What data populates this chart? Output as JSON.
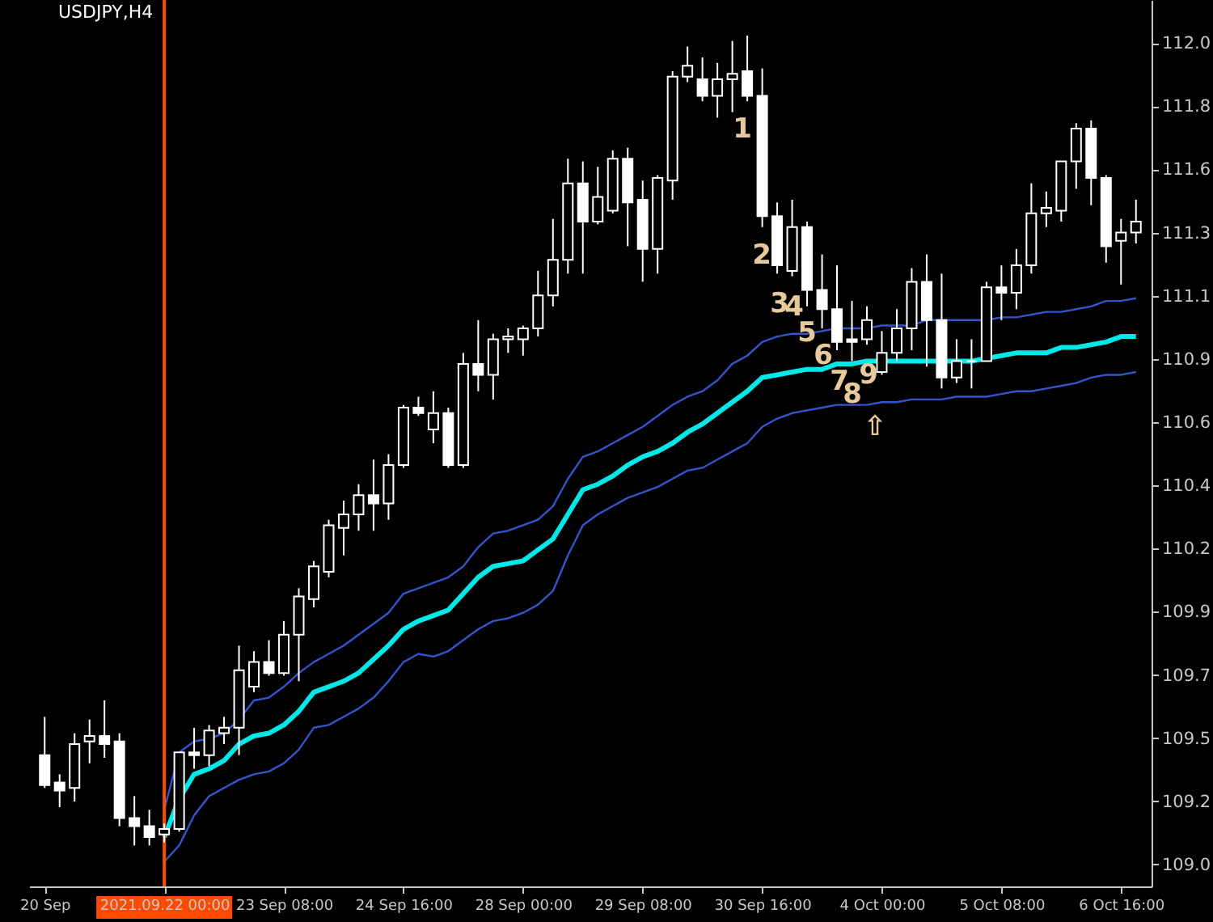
{
  "chart_data": {
    "type": "candlestick",
    "title": "USDJPY,H4",
    "categories": [
      "20 Sep",
      null,
      null,
      null,
      null,
      null,
      null,
      null,
      "2021.09.22 00:00",
      null,
      null,
      null,
      null,
      null,
      null,
      null,
      "23 Sep 08:00",
      null,
      null,
      null,
      null,
      null,
      null,
      null,
      "24 Sep 16:00",
      null,
      null,
      null,
      null,
      null,
      null,
      null,
      "28 Sep 00:00",
      null,
      null,
      null,
      null,
      null,
      null,
      null,
      "29 Sep 08:00",
      null,
      null,
      null,
      null,
      null,
      null,
      null,
      "30 Sep 16:00",
      null,
      null,
      null,
      null,
      null,
      null,
      null,
      "4 Oct 00:00",
      null,
      null,
      null,
      null,
      null,
      null,
      null,
      "5 Oct 08:00",
      null,
      null,
      null,
      null,
      null,
      null,
      null,
      "6 Oct 16:00",
      null
    ],
    "ohlc": [
      [
        109.41,
        109.55,
        109.29,
        109.3
      ],
      [
        109.31,
        109.34,
        109.22,
        109.28
      ],
      [
        109.29,
        109.49,
        109.24,
        109.45
      ],
      [
        109.46,
        109.54,
        109.38,
        109.48
      ],
      [
        109.48,
        109.61,
        109.4,
        109.45
      ],
      [
        109.46,
        109.49,
        109.15,
        109.18
      ],
      [
        109.18,
        109.26,
        109.08,
        109.15
      ],
      [
        109.15,
        109.21,
        109.08,
        109.11
      ],
      [
        109.12,
        109.16,
        109.09,
        109.14
      ],
      [
        109.14,
        109.42,
        109.13,
        109.42
      ],
      [
        109.42,
        109.51,
        109.36,
        109.41
      ],
      [
        109.41,
        109.52,
        109.37,
        109.5
      ],
      [
        109.49,
        109.55,
        109.45,
        109.51
      ],
      [
        109.51,
        109.81,
        109.41,
        109.72
      ],
      [
        109.66,
        109.79,
        109.64,
        109.75
      ],
      [
        109.75,
        109.83,
        109.7,
        109.71
      ],
      [
        109.71,
        109.9,
        109.7,
        109.85
      ],
      [
        109.85,
        110.02,
        109.68,
        109.99
      ],
      [
        109.98,
        110.12,
        109.95,
        110.1
      ],
      [
        110.08,
        110.27,
        110.06,
        110.25
      ],
      [
        110.24,
        110.34,
        110.14,
        110.29
      ],
      [
        110.29,
        110.4,
        110.23,
        110.36
      ],
      [
        110.36,
        110.49,
        110.23,
        110.33
      ],
      [
        110.33,
        110.51,
        110.27,
        110.47
      ],
      [
        110.47,
        110.69,
        110.46,
        110.68
      ],
      [
        110.68,
        110.72,
        110.65,
        110.66
      ],
      [
        110.6,
        110.74,
        110.55,
        110.66
      ],
      [
        110.66,
        110.68,
        110.46,
        110.47
      ],
      [
        110.47,
        110.88,
        110.46,
        110.84
      ],
      [
        110.84,
        111.0,
        110.74,
        110.8
      ],
      [
        110.8,
        110.95,
        110.71,
        110.93
      ],
      [
        110.93,
        110.97,
        110.88,
        110.94
      ],
      [
        110.93,
        110.98,
        110.87,
        110.97
      ],
      [
        110.97,
        111.18,
        110.94,
        111.09
      ],
      [
        111.09,
        111.37,
        111.05,
        111.22
      ],
      [
        111.22,
        111.59,
        111.17,
        111.5
      ],
      [
        111.5,
        111.58,
        111.17,
        111.36
      ],
      [
        111.36,
        111.56,
        111.35,
        111.45
      ],
      [
        111.4,
        111.62,
        111.39,
        111.59
      ],
      [
        111.59,
        111.63,
        111.27,
        111.43
      ],
      [
        111.44,
        111.51,
        111.14,
        111.26
      ],
      [
        111.26,
        111.53,
        111.17,
        111.52
      ],
      [
        111.51,
        111.91,
        111.44,
        111.89
      ],
      [
        111.89,
        112.0,
        111.87,
        111.93
      ],
      [
        111.88,
        111.96,
        111.8,
        111.82
      ],
      [
        111.82,
        111.94,
        111.74,
        111.88
      ],
      [
        111.88,
        112.02,
        111.76,
        111.9
      ],
      [
        111.91,
        112.04,
        111.8,
        111.82
      ],
      [
        111.82,
        111.92,
        111.34,
        111.38
      ],
      [
        111.38,
        111.43,
        111.17,
        111.2
      ],
      [
        111.18,
        111.44,
        111.16,
        111.34
      ],
      [
        111.34,
        111.36,
        111.05,
        111.11
      ],
      [
        111.11,
        111.24,
        110.97,
        111.04
      ],
      [
        111.04,
        111.2,
        110.89,
        110.92
      ],
      [
        110.93,
        111.07,
        110.85,
        110.92
      ],
      [
        110.93,
        111.05,
        110.91,
        111.0
      ],
      [
        110.81,
        110.96,
        110.8,
        110.88
      ],
      [
        110.88,
        111.04,
        110.85,
        110.97
      ],
      [
        110.97,
        111.19,
        110.89,
        111.14
      ],
      [
        111.14,
        111.24,
        110.83,
        111.0
      ],
      [
        111.0,
        111.17,
        110.75,
        110.79
      ],
      [
        110.79,
        110.93,
        110.77,
        110.85
      ],
      [
        110.85,
        110.93,
        110.75,
        110.85
      ],
      [
        110.85,
        111.14,
        110.85,
        111.12
      ],
      [
        111.12,
        111.2,
        111.0,
        111.1
      ],
      [
        111.1,
        111.26,
        111.04,
        111.2
      ],
      [
        111.2,
        111.5,
        111.17,
        111.39
      ],
      [
        111.39,
        111.47,
        111.34,
        111.41
      ],
      [
        111.4,
        111.58,
        111.36,
        111.58
      ],
      [
        111.58,
        111.72,
        111.48,
        111.7
      ],
      [
        111.7,
        111.73,
        111.42,
        111.52
      ],
      [
        111.52,
        111.53,
        111.21,
        111.27
      ],
      [
        111.29,
        111.37,
        111.13,
        111.32
      ],
      [
        111.32,
        111.44,
        111.28,
        111.36
      ]
    ],
    "series": [
      {
        "type": "line",
        "color": "#00e8e8",
        "values": [
          null,
          null,
          null,
          null,
          null,
          null,
          null,
          null,
          109.11,
          109.25,
          109.34,
          109.36,
          109.39,
          109.45,
          109.48,
          109.49,
          109.52,
          109.57,
          109.64,
          109.66,
          109.68,
          109.71,
          109.76,
          109.81,
          109.87,
          109.9,
          109.92,
          109.94,
          110.0,
          110.06,
          110.1,
          110.11,
          110.12,
          110.16,
          110.2,
          110.29,
          110.38,
          110.4,
          110.43,
          110.47,
          110.5,
          110.52,
          110.55,
          110.59,
          110.62,
          110.66,
          110.7,
          110.74,
          110.79,
          110.8,
          110.81,
          110.82,
          110.82,
          110.84,
          110.84,
          110.85,
          110.85,
          110.85,
          110.85,
          110.85,
          110.85,
          110.85,
          110.85,
          110.86,
          110.87,
          110.88,
          110.88,
          110.88,
          110.9,
          110.9,
          110.91,
          110.92,
          110.94,
          110.94
        ]
      },
      {
        "type": "line",
        "color": "#3355cc",
        "values": [
          null,
          null,
          null,
          null,
          null,
          null,
          null,
          null,
          109.21,
          109.42,
          109.46,
          109.47,
          109.49,
          109.54,
          109.61,
          109.62,
          109.66,
          109.71,
          109.75,
          109.78,
          109.81,
          109.85,
          109.89,
          109.93,
          110.0,
          110.02,
          110.04,
          110.06,
          110.1,
          110.17,
          110.22,
          110.23,
          110.25,
          110.27,
          110.32,
          110.42,
          110.5,
          110.52,
          110.55,
          110.58,
          110.61,
          110.65,
          110.69,
          110.72,
          110.74,
          110.78,
          110.84,
          110.87,
          110.92,
          110.94,
          110.95,
          110.95,
          110.96,
          110.97,
          110.97,
          110.97,
          110.98,
          110.98,
          110.98,
          111.0,
          111.0,
          111.0,
          111.0,
          111.0,
          111.01,
          111.01,
          111.02,
          111.03,
          111.03,
          111.04,
          111.05,
          111.07,
          111.07,
          111.08
        ]
      },
      {
        "type": "line",
        "color": "#3355cc",
        "values": [
          null,
          null,
          null,
          null,
          null,
          null,
          null,
          null,
          109.02,
          109.08,
          109.19,
          109.26,
          109.29,
          109.32,
          109.34,
          109.35,
          109.38,
          109.43,
          109.51,
          109.52,
          109.55,
          109.58,
          109.62,
          109.68,
          109.75,
          109.78,
          109.77,
          109.79,
          109.83,
          109.87,
          109.9,
          109.91,
          109.93,
          109.96,
          110.01,
          110.14,
          110.25,
          110.29,
          110.32,
          110.35,
          110.37,
          110.39,
          110.42,
          110.45,
          110.46,
          110.49,
          110.52,
          110.55,
          110.61,
          110.64,
          110.66,
          110.67,
          110.68,
          110.69,
          110.69,
          110.69,
          110.7,
          110.7,
          110.71,
          110.71,
          110.71,
          110.72,
          110.72,
          110.72,
          110.73,
          110.74,
          110.74,
          110.75,
          110.76,
          110.77,
          110.79,
          110.8,
          110.8,
          110.81
        ]
      }
    ],
    "ylim": [
      108.93,
      112.17
    ],
    "yticks": [
      {
        "value": 109.01,
        "label": "109.0"
      },
      {
        "value": 109.241,
        "label": "109.2"
      },
      {
        "value": 109.472,
        "label": "109.5"
      },
      {
        "value": 109.703,
        "label": "109.7"
      },
      {
        "value": 109.934,
        "label": "109.9"
      },
      {
        "value": 110.165,
        "label": "110.2"
      },
      {
        "value": 110.396,
        "label": "110.4"
      },
      {
        "value": 110.627,
        "label": "110.6"
      },
      {
        "value": 110.858,
        "label": "110.9"
      },
      {
        "value": 111.089,
        "label": "111.1"
      },
      {
        "value": 111.32,
        "label": "111.3"
      },
      {
        "value": 111.551,
        "label": "111.6"
      },
      {
        "value": 111.782,
        "label": "111.8"
      },
      {
        "value": 112.013,
        "label": "112.0"
      }
    ],
    "ref_lines": [
      {
        "axis": "x",
        "value": "2021.09.22 00:00",
        "color": "#ff4a00"
      }
    ],
    "annotations": [
      "1",
      "2",
      "3",
      "4",
      "5",
      "6",
      "7",
      "8",
      "9",
      "⇧"
    ],
    "grid": false
  }
}
